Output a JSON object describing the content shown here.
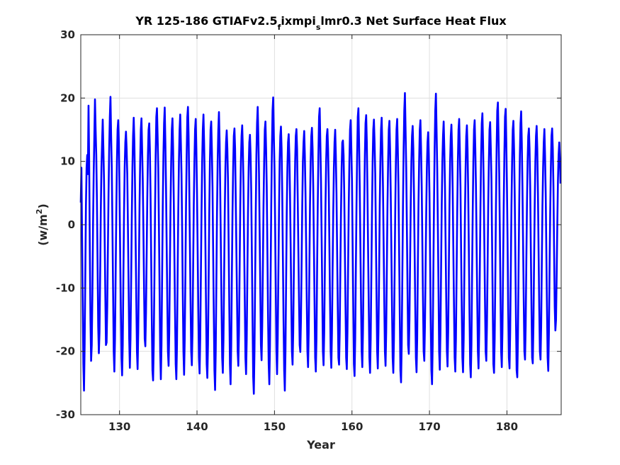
{
  "chart_data": {
    "type": "line",
    "title_parts": [
      "YR 125-186 GTIAFv2.5",
      "f",
      "ixmpi",
      "s",
      "lmr0.3 Net Surface Heat Flux"
    ],
    "xlabel": "Year",
    "ylabel_parts": [
      "(w/m",
      "2",
      ")"
    ],
    "xlim": [
      125,
      187
    ],
    "ylim": [
      -30,
      30
    ],
    "xticks": [
      130,
      140,
      150,
      160,
      170,
      180
    ],
    "yticks": [
      -30,
      -20,
      -10,
      0,
      10,
      20,
      30
    ],
    "grid": true,
    "line_color": "#0000ff",
    "series": [
      {
        "x_start": 125,
        "points_per_year": 12,
        "values": [
          3.5,
          9,
          -2,
          -12,
          -22,
          -26.2,
          -19,
          -8,
          3,
          9,
          11,
          8,
          18.8,
          10,
          -4,
          -15,
          -21.5,
          -19,
          -11,
          0,
          8,
          14,
          19.8,
          15,
          11,
          4,
          -6,
          -16,
          -20.3,
          -17,
          -8,
          2,
          9,
          13,
          16.6,
          12,
          7,
          -2,
          -11,
          -19,
          -18.6,
          -13,
          -4,
          5,
          12,
          17,
          20.2,
          14,
          9,
          0,
          -10,
          -20,
          -23.2,
          -18,
          -8,
          2,
          10,
          15,
          16.5,
          13,
          5,
          -4,
          -13,
          -21,
          -23.8,
          -19,
          -8,
          2,
          9,
          13,
          14.7,
          12,
          8,
          0,
          -9,
          -18,
          -22.6,
          -18,
          -9,
          1,
          9,
          14,
          16.9,
          13,
          6,
          -3,
          -12,
          -20,
          -22.8,
          -17,
          -7,
          3,
          10,
          15,
          16.8,
          12,
          7,
          -1,
          -10,
          -18,
          -19.2,
          -14,
          -5,
          4,
          11,
          15,
          16,
          12,
          5,
          -5,
          -15,
          -23,
          -24.6,
          -19,
          -9,
          2,
          11,
          17,
          18.4,
          14,
          9,
          0,
          -10,
          -20,
          -24.4,
          -19,
          -8,
          3,
          11,
          16,
          18.5,
          13,
          6,
          -3,
          -12,
          -20,
          -22.3,
          -17,
          -7,
          3,
          10,
          15,
          16.8,
          12,
          4,
          -5,
          -14,
          -22,
          -24.4,
          -19,
          -8,
          2,
          10,
          15,
          17.4,
          13,
          8,
          -1,
          -11,
          -20,
          -23.7,
          -18,
          -8,
          3,
          11,
          17,
          18.6,
          14,
          6,
          -3,
          -12,
          -20,
          -22.2,
          -17,
          -7,
          3,
          10,
          15,
          16.7,
          12,
          5,
          -4,
          -13,
          -21,
          -23.5,
          -18,
          -8,
          2,
          10,
          15,
          17.4,
          13,
          7,
          -3,
          -13,
          -22,
          -24.2,
          -19,
          -9,
          2,
          10,
          15,
          16.3,
          12,
          6,
          -4,
          -14,
          -23,
          -26.1,
          -20,
          -9,
          2,
          10,
          15,
          17.8,
          13,
          5,
          -4,
          -13,
          -21,
          -23.4,
          -18,
          -8,
          2,
          9,
          13,
          14.9,
          12,
          7,
          -3,
          -13,
          -22,
          -25.2,
          -19,
          -8,
          2,
          9,
          14,
          15.2,
          12,
          4,
          -4,
          -12,
          -20,
          -22.3,
          -17,
          -7,
          3,
          10,
          14,
          15.7,
          12,
          6,
          -3,
          -12,
          -21,
          -23.6,
          -18,
          -8,
          2,
          9,
          13,
          14.2,
          11,
          5,
          -5,
          -15,
          -24,
          -26.7,
          -20,
          -9,
          2,
          11,
          16,
          18.6,
          14,
          8,
          -1,
          -10,
          -19,
          -21.4,
          -16,
          -7,
          3,
          10,
          15,
          16.3,
          12,
          6,
          -4,
          -14,
          -22,
          -25.2,
          -19,
          -8,
          3,
          12,
          18,
          20.1,
          14,
          9,
          0,
          -10,
          -20,
          -23.6,
          -18,
          -8,
          2,
          10,
          14,
          15.5,
          12,
          5,
          -5,
          -15,
          -23,
          -26.2,
          -20,
          -9,
          2,
          9,
          13,
          14.3,
          11,
          5,
          -3,
          -12,
          -20,
          -22.1,
          -17,
          -7,
          3,
          10,
          14,
          15.1,
          12,
          4,
          -4,
          -12,
          -19,
          -20.1,
          -15,
          -6,
          3,
          10,
          13,
          14.8,
          11,
          5,
          -3,
          -12,
          -20,
          -22.5,
          -17,
          -7,
          3,
          10,
          14,
          15.3,
          12,
          6,
          -3,
          -12,
          -21,
          -23.2,
          -18,
          -7,
          3,
          11,
          17,
          18.4,
          13,
          7,
          -2,
          -11,
          -20,
          -22.2,
          -17,
          -7,
          3,
          10,
          14,
          15.1,
          12,
          6,
          -3,
          -12,
          -20,
          -22.6,
          -17,
          -7,
          2,
          9,
          13,
          15,
          11,
          5,
          -4,
          -13,
          -21,
          -22.1,
          -17,
          -7,
          2,
          9,
          13,
          13.3,
          11,
          5,
          -4,
          -13,
          -21,
          -22.8,
          -17,
          -7,
          3,
          10,
          15,
          16.5,
          12,
          7,
          -3,
          -13,
          -22,
          -23.9,
          -18,
          -7,
          3,
          11,
          17,
          18.4,
          13,
          6,
          -3,
          -12,
          -20,
          -22.5,
          -17,
          -7,
          3,
          11,
          16,
          17.3,
          13,
          5,
          -4,
          -13,
          -21,
          -23.4,
          -18,
          -8,
          2,
          10,
          15,
          16.6,
          13,
          8,
          -1,
          -11,
          -20,
          -22.7,
          -17,
          -8,
          3,
          10,
          15,
          16.9,
          12,
          6,
          -3,
          -12,
          -20,
          -22.3,
          -17,
          -7,
          3,
          10,
          15,
          16.4,
          12,
          5,
          -4,
          -13,
          -21,
          -23.4,
          -18,
          -8,
          2,
          10,
          15,
          16.7,
          12,
          6,
          -4,
          -14,
          -23,
          -24.9,
          -19,
          -8,
          3,
          12,
          18,
          20.8,
          15,
          9,
          0,
          -10,
          -19,
          -20.4,
          -15,
          -6,
          3,
          10,
          14,
          15.6,
          12,
          5,
          -4,
          -13,
          -21,
          -23.3,
          -18,
          -7,
          3,
          10,
          15,
          16.5,
          12,
          6,
          -3,
          -12,
          -20,
          -21.5,
          -16,
          -7,
          2,
          9,
          13,
          14.6,
          11,
          5,
          -5,
          -15,
          -23,
          -25.2,
          -19,
          -8,
          3,
          12,
          18,
          20.7,
          15,
          9,
          0,
          -10,
          -20,
          -22.9,
          -17,
          -7,
          3,
          10,
          14,
          16.3,
          12,
          6,
          -3,
          -12,
          -20,
          -22.4,
          -17,
          -7,
          3,
          10,
          14,
          15.8,
          12,
          5,
          -4,
          -13,
          -21,
          -23.2,
          -18,
          -8,
          2,
          10,
          15,
          16.7,
          12,
          6,
          -4,
          -13,
          -21,
          -23.3,
          -18,
          -8,
          2,
          9,
          14,
          15.7,
          12,
          5,
          -4,
          -14,
          -22,
          -24.1,
          -19,
          -8,
          2,
          10,
          15,
          16.5,
          12,
          6,
          -3,
          -12,
          -20,
          -22.7,
          -17,
          -7,
          3,
          11,
          16,
          17.6,
          13,
          6,
          -3,
          -12,
          -20,
          -21.5,
          -16,
          -7,
          3,
          10,
          15,
          16.2,
          12,
          7,
          -3,
          -13,
          -22,
          -23.4,
          -18,
          -8,
          3,
          12,
          18,
          19.3,
          14,
          8,
          -1,
          -11,
          -20,
          -22.5,
          -17,
          -7,
          3,
          11,
          17,
          18.3,
          13,
          6,
          -3,
          -13,
          -21,
          -22.7,
          -17,
          -7,
          3,
          10,
          15,
          16.4,
          12,
          5,
          -5,
          -15,
          -23,
          -24.1,
          -18,
          -7,
          3,
          11,
          16,
          17.9,
          13,
          6,
          -3,
          -12,
          -20,
          -21.3,
          -16,
          -6,
          3,
          10,
          14,
          15.2,
          12,
          6,
          -4,
          -13,
          -21,
          -21.9,
          -16,
          -6,
          3,
          10,
          14,
          15.6,
          12,
          5,
          -4,
          -13,
          -20,
          -21.3,
          -16,
          -6,
          3,
          9,
          13,
          15.1,
          11,
          5,
          -4,
          -13,
          -21,
          -23.1,
          -17,
          -7,
          2,
          9,
          14,
          15.2,
          12,
          6,
          -4,
          -13,
          -16.7,
          -15,
          -8,
          0,
          7,
          11,
          13,
          10.5,
          6.5
        ]
      }
    ]
  }
}
